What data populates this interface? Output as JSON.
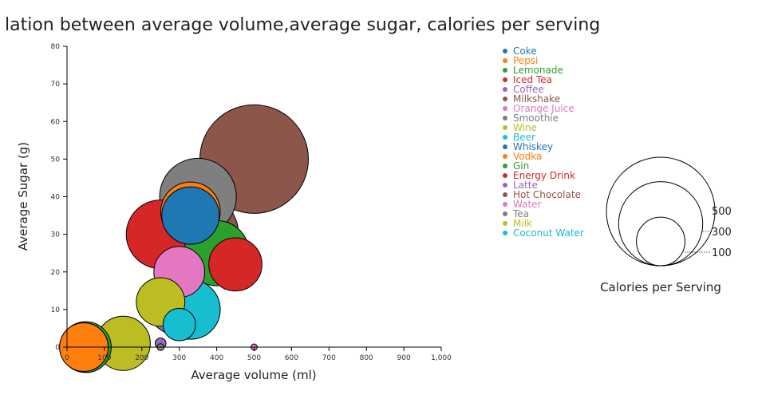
{
  "chart_data": {
    "type": "scatter",
    "title": "lation between average volume,average sugar, calories per serving",
    "xlabel": "Average volume (ml)",
    "ylabel": "Average Sugar (g)",
    "xlim": [
      0,
      1000
    ],
    "ylim": [
      0,
      80
    ],
    "x_ticks": [
      0,
      100,
      200,
      300,
      400,
      500,
      600,
      700,
      800,
      900,
      1000
    ],
    "x_tick_labels": [
      "0",
      "100",
      "200",
      "300",
      "400",
      "500",
      "600",
      "700",
      "800",
      "900",
      "1,000"
    ],
    "y_ticks": [
      0,
      10,
      20,
      30,
      40,
      50,
      60,
      70,
      80
    ],
    "y_tick_labels": [
      "0",
      "10",
      "20",
      "30",
      "40",
      "50",
      "60",
      "70",
      "80"
    ],
    "grid": false,
    "legend_position": "top-right",
    "size_legend": {
      "title": "Calories per Serving",
      "values": [
        500,
        300,
        100
      ],
      "labels": [
        "500",
        "300",
        "100"
      ]
    },
    "series": [
      {
        "name": "Coke",
        "color": "#1f77b4",
        "x": 330,
        "y": 35,
        "calories": 140
      },
      {
        "name": "Pepsi",
        "color": "#ff7f0e",
        "x": 330,
        "y": 36,
        "calories": 150
      },
      {
        "name": "Lemonade",
        "color": "#2ca02c",
        "x": 400,
        "y": 25,
        "calories": 180
      },
      {
        "name": "Iced Tea",
        "color": "#d62728",
        "x": 450,
        "y": 22,
        "calories": 120
      },
      {
        "name": "Coffee",
        "color": "#9467bd",
        "x": 250,
        "y": 1,
        "calories": 5
      },
      {
        "name": "Milkshake",
        "color": "#8c564b",
        "x": 500,
        "y": 50,
        "calories": 500
      },
      {
        "name": "Orange Juice",
        "color": "#e377c2",
        "x": 300,
        "y": 20,
        "calories": 110
      },
      {
        "name": "Smoothie",
        "color": "#7f7f7f",
        "x": 350,
        "y": 40,
        "calories": 250
      },
      {
        "name": "Wine",
        "color": "#bcbd22",
        "x": 150,
        "y": 1,
        "calories": 125
      },
      {
        "name": "Beer",
        "color": "#17becf",
        "x": 330,
        "y": 10,
        "calories": 150
      },
      {
        "name": "Whiskey",
        "color": "#1f77b4",
        "x": 45,
        "y": 0,
        "calories": 100
      },
      {
        "name": "Vodka",
        "color": "#ff7f0e",
        "x": 45,
        "y": 0,
        "calories": 100
      },
      {
        "name": "Gin",
        "color": "#2ca02c",
        "x": 50,
        "y": 0,
        "calories": 110
      },
      {
        "name": "Energy Drink",
        "color": "#d62728",
        "x": 250,
        "y": 30,
        "calories": 200
      },
      {
        "name": "Latte",
        "color": "#9467bd",
        "x": 300,
        "y": 12,
        "calories": 190
      },
      {
        "name": "Hot Chocolate",
        "color": "#8c564b",
        "x": 350,
        "y": 30,
        "calories": 280
      },
      {
        "name": "Water",
        "color": "#e377c2",
        "x": 500,
        "y": 0,
        "calories": 1
      },
      {
        "name": "Tea",
        "color": "#7f7f7f",
        "x": 250,
        "y": 0,
        "calories": 2
      },
      {
        "name": "Milk",
        "color": "#bcbd22",
        "x": 250,
        "y": 12,
        "calories": 100
      },
      {
        "name": "Coconut Water",
        "color": "#17becf",
        "x": 300,
        "y": 6,
        "calories": 45
      }
    ]
  }
}
